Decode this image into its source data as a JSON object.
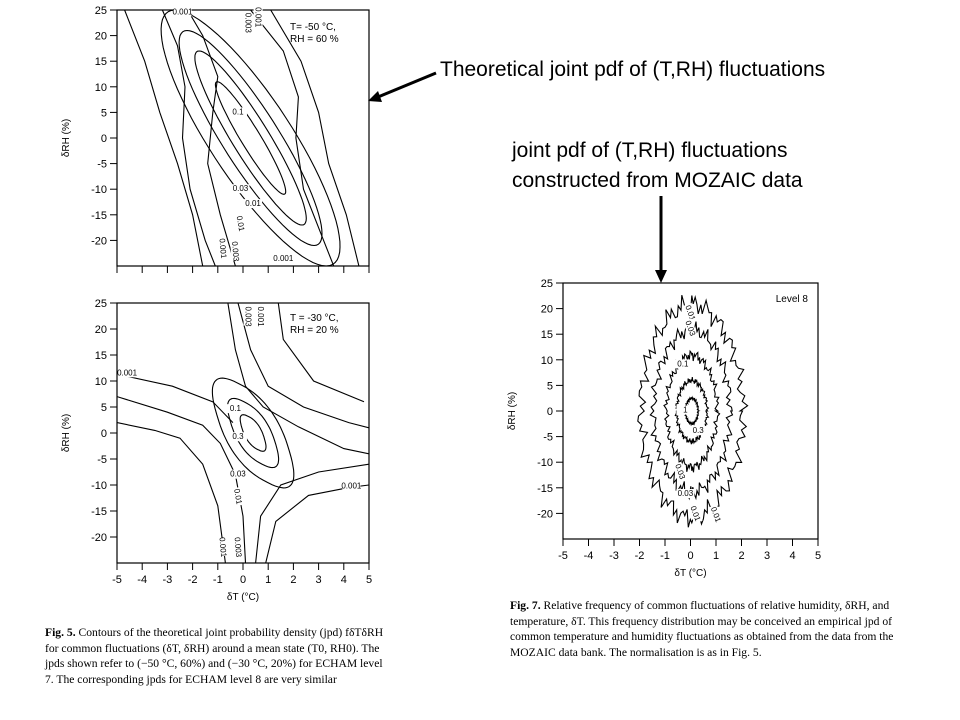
{
  "annotations": {
    "top": "Theoretical joint pdf of (T,RH) fluctuations",
    "mid_line1": "joint pdf of (T,RH) fluctuations",
    "mid_line2": "constructed from MOZAIC data"
  },
  "captions": {
    "left_fig": "Fig. 5.",
    "left_text": "Contours of the theoretical joint probability density (jpd) fδTδRH for common fluctuations (δT, δRH) around a mean state (T0, RH0). The jpds shown refer to (−50 °C, 60%) and (−30 °C, 20%) for ECHAM level 7. The corresponding jpds for ECHAM level 8 are very similar",
    "right_fig": "Fig. 7.",
    "right_text": "Relative frequency of common fluctuations of relative humidity, δRH, and temperature, δT. This frequency distribution may be conceived an empirical jpd of common temperature and humidity fluctuations as obtained from the data from the MOZAIC data bank. The normalisation is as in Fig. 5."
  },
  "colors": {
    "ink": "#000000",
    "background": "#ffffff"
  },
  "chart_data": [
    {
      "type": "contour",
      "panel": "theoretical-top",
      "legend": [
        "T= -50 °C,",
        "RH = 60 %"
      ],
      "ylabel": "δRH (%)",
      "xlabel": "",
      "xlim": [
        -5,
        5
      ],
      "ylim": [
        -25,
        25
      ],
      "yticks": [
        25,
        20,
        15,
        10,
        5,
        0,
        -5,
        -10,
        -15,
        -20
      ],
      "xticks": [
        -5,
        -4,
        -3,
        -2,
        -1,
        0,
        1,
        2,
        3,
        4,
        5
      ],
      "show_x_tick_labels": false,
      "contour_labels": [
        {
          "text": "0.001",
          "x": -2.4,
          "y": 24.1
        },
        {
          "text": "0.001",
          "x": 0.5,
          "y": 23.6,
          "rotate": 90
        },
        {
          "text": "0.003",
          "x": 0.1,
          "y": 22.5,
          "rotate": 90
        },
        {
          "text": "0.1",
          "x": -0.2,
          "y": 4.6
        },
        {
          "text": "0.03",
          "x": -0.1,
          "y": -10.4
        },
        {
          "text": "0.01",
          "x": 0.4,
          "y": -13.3
        },
        {
          "text": "0.01",
          "x": -0.2,
          "y": -16.8,
          "rotate": 80
        },
        {
          "text": "0.001",
          "x": -0.9,
          "y": -21.6,
          "rotate": 85
        },
        {
          "text": "0.003",
          "x": -0.4,
          "y": -22.2,
          "rotate": 85
        },
        {
          "text": "0.001",
          "x": 1.6,
          "y": -24.0
        }
      ]
    },
    {
      "type": "contour",
      "panel": "theoretical-bottom",
      "legend": [
        "T = -30 °C,",
        "RH = 20 %"
      ],
      "ylabel": "δRH (%)",
      "xlabel": "δT (°C)",
      "xlim": [
        -5,
        5
      ],
      "ylim": [
        -25,
        25
      ],
      "yticks": [
        25,
        20,
        15,
        10,
        5,
        0,
        -5,
        -10,
        -15,
        -20
      ],
      "xticks": [
        -5,
        -4,
        -3,
        -2,
        -1,
        0,
        1,
        2,
        3,
        4,
        5
      ],
      "show_x_tick_labels": true,
      "contour_labels": [
        {
          "text": "0.001",
          "x": -4.6,
          "y": 11.1
        },
        {
          "text": "0.003",
          "x": 0.1,
          "y": 22.4,
          "rotate": 90
        },
        {
          "text": "0.001",
          "x": 0.6,
          "y": 22.4,
          "rotate": 90
        },
        {
          "text": "0.1",
          "x": -0.3,
          "y": 4.2
        },
        {
          "text": "0.3",
          "x": -0.2,
          "y": -1.2
        },
        {
          "text": "0.03",
          "x": -0.2,
          "y": -8.4
        },
        {
          "text": "0.01",
          "x": -0.3,
          "y": -12.3,
          "rotate": 80
        },
        {
          "text": "0.001",
          "x": -0.9,
          "y": -22.0,
          "rotate": 85
        },
        {
          "text": "0.003",
          "x": -0.3,
          "y": -22.0,
          "rotate": 85
        },
        {
          "text": "0.001",
          "x": 4.3,
          "y": -10.7
        }
      ]
    },
    {
      "type": "contour",
      "panel": "mozaic",
      "legend": [
        "Level 8"
      ],
      "ylabel": "δRH (%)",
      "xlabel": "δT (°C)",
      "xlim": [
        -5,
        5
      ],
      "ylim": [
        -25,
        25
      ],
      "yticks": [
        25,
        20,
        15,
        10,
        5,
        0,
        -5,
        -10,
        -15,
        -20
      ],
      "xticks": [
        -5,
        -4,
        -3,
        -2,
        -1,
        0,
        1,
        2,
        3,
        4,
        5
      ],
      "show_x_tick_labels": true,
      "contour_labels": [
        {
          "text": "0.01",
          "x": -0.1,
          "y": 19.0,
          "rotate": 70
        },
        {
          "text": "0.03",
          "x": -0.1,
          "y": 16.0,
          "rotate": 70
        },
        {
          "text": "0.1",
          "x": -0.3,
          "y": 8.7
        },
        {
          "text": "1",
          "x": -0.2,
          "y": -0.3
        },
        {
          "text": "0.3",
          "x": 0.3,
          "y": -4.3
        },
        {
          "text": "0.03",
          "x": -0.5,
          "y": -12.0,
          "rotate": 70
        },
        {
          "text": "0.03",
          "x": -0.2,
          "y": -16.6
        },
        {
          "text": "0.01",
          "x": 0.1,
          "y": -20.2,
          "rotate": 70
        },
        {
          "text": "0.01",
          "x": 0.9,
          "y": -20.4,
          "rotate": 70
        }
      ]
    }
  ]
}
